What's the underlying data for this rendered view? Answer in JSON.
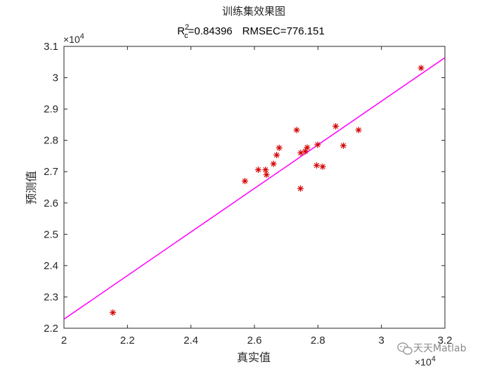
{
  "chart_data": {
    "type": "scatter",
    "title": "训练集效果图",
    "subtitle": {
      "r2_base": "R",
      "r2_sup": "2",
      "r2_sub": "c",
      "r2_value": "=0.84396",
      "rmse_text": "RMSEC=776.151"
    },
    "xlabel": "真实值",
    "ylabel": "预测值",
    "x_exponent_label": "×10",
    "x_exponent_power": "4",
    "y_exponent_label": "×10",
    "y_exponent_power": "4",
    "xlim": [
      20000,
      32000
    ],
    "ylim": [
      22000,
      31000
    ],
    "x_ticks": [
      20000,
      22000,
      24000,
      26000,
      28000,
      30000,
      32000
    ],
    "x_tick_labels": [
      "2",
      "2.2",
      "2.4",
      "2.6",
      "2.8",
      "3",
      "3.2"
    ],
    "y_ticks": [
      22000,
      23000,
      24000,
      25000,
      26000,
      27000,
      28000,
      29000,
      30000,
      31000
    ],
    "y_tick_labels": [
      "2.2",
      "2.3",
      "2.4",
      "2.5",
      "2.6",
      "2.7",
      "2.8",
      "2.9",
      "3",
      "3.1"
    ],
    "series": [
      {
        "marker": "asterisk",
        "color": "#d40000",
        "points": [
          [
            21540,
            22500
          ],
          [
            25700,
            26700
          ],
          [
            26120,
            27060
          ],
          [
            26350,
            27060
          ],
          [
            26380,
            26900
          ],
          [
            26600,
            27250
          ],
          [
            26700,
            27530
          ],
          [
            26780,
            27760
          ],
          [
            27330,
            28330
          ],
          [
            27450,
            26460
          ],
          [
            27460,
            27600
          ],
          [
            27600,
            27650
          ],
          [
            27660,
            27770
          ],
          [
            27960,
            27200
          ],
          [
            27990,
            27860
          ],
          [
            28150,
            27160
          ],
          [
            28560,
            28450
          ],
          [
            28800,
            27830
          ],
          [
            29280,
            28330
          ],
          [
            31250,
            30310
          ]
        ]
      }
    ],
    "fit_line": {
      "color": "#ff00ff",
      "points": [
        [
          20000,
          22290
        ],
        [
          32000,
          30640
        ]
      ]
    },
    "grid": false,
    "legend": "none"
  },
  "watermark": {
    "text": "天天Matlab",
    "icon": "wechat-icon"
  }
}
